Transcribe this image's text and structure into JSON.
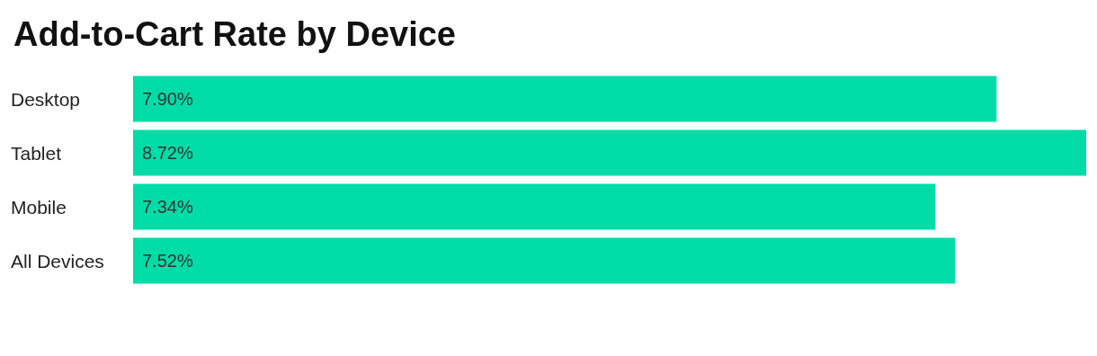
{
  "chart_data": {
    "type": "bar",
    "orientation": "horizontal",
    "title": "Add-to-Cart Rate by Device",
    "categories": [
      "Desktop",
      "Tablet",
      "Mobile",
      "All Devices"
    ],
    "values": [
      7.9,
      8.72,
      7.34,
      7.52
    ],
    "value_labels": [
      "7.90%",
      "8.72%",
      "7.34%",
      "7.52%"
    ],
    "color": "#00dca7"
  }
}
